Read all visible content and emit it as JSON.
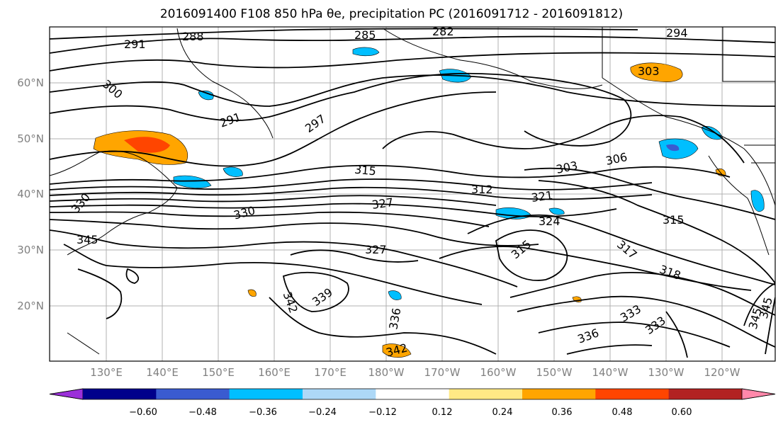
{
  "title": "2016091400 F108 850 hPa θe, precipitation PC (2016091712 - 2016091812)",
  "lat_labels": [
    "60°N",
    "50°N",
    "40°N",
    "30°N",
    "20°N"
  ],
  "lon_labels": [
    "130°E",
    "140°E",
    "150°E",
    "160°E",
    "170°E",
    "180°W",
    "170°W",
    "160°W",
    "150°W",
    "140°W",
    "130°W",
    "120°W"
  ],
  "contour_labels": [
    "291",
    "288",
    "285",
    "282",
    "294",
    "303",
    "300",
    "291",
    "297",
    "303",
    "306",
    "315",
    "312",
    "321",
    "330",
    "327",
    "324",
    "315",
    "345",
    "330",
    "327",
    "315",
    "317",
    "318",
    "339",
    "342",
    "336",
    "333",
    "333",
    "336",
    "342",
    "345",
    "345"
  ],
  "colorbar": {
    "colors": [
      "#9b30d9",
      "#00008b",
      "#3a5bd0",
      "#00bfff",
      "#add8f7",
      "#ffffff",
      "#ffe985",
      "#ffa500",
      "#ff4500",
      "#b22222",
      "#ff88aa"
    ],
    "tick_labels": [
      "−0.60",
      "−0.48",
      "−0.36",
      "−0.24",
      "−0.12",
      "0.12",
      "0.24",
      "0.36",
      "0.48",
      "0.60"
    ]
  },
  "colors": {
    "gridline": "#b0b0b0",
    "contour": "#000000",
    "coast": "#000000"
  }
}
